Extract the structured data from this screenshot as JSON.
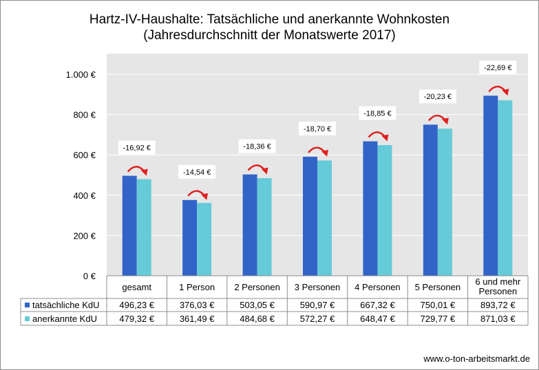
{
  "title": "Hartz-IV-Haushalte: Tatsächliche und anerkannte Wohnkosten",
  "subtitle": "(Jahresdurchschnitt der Monatswerte 2017)",
  "footer": "www.o-ton-arbeitsmarkt.de",
  "chart_data": {
    "type": "bar",
    "title": "Hartz-IV-Haushalte: Tatsächliche und anerkannte Wohnkosten",
    "subtitle": "(Jahresdurchschnitt der Monatswerte 2017)",
    "categories": [
      "gesamt",
      "1 Person",
      "2 Personen",
      "3 Personen",
      "4 Personen",
      "5 Personen",
      "6 und mehr Personen"
    ],
    "category_lines": [
      [
        "gesamt"
      ],
      [
        "1 Person"
      ],
      [
        "2 Personen"
      ],
      [
        "3 Personen"
      ],
      [
        "4 Personen"
      ],
      [
        "5 Personen"
      ],
      [
        "6 und mehr",
        "Personen"
      ]
    ],
    "series": [
      {
        "name": "tatsächliche KdU",
        "color": "#3264c8",
        "values": [
          496.23,
          376.03,
          503.05,
          590.97,
          667.32,
          750.01,
          893.72
        ],
        "labels": [
          "496,23 €",
          "376,03 €",
          "503,05 €",
          "590,97 €",
          "667,32 €",
          "750,01 €",
          "893,72 €"
        ]
      },
      {
        "name": "anerkannte KdU",
        "color": "#66cbd8",
        "values": [
          479.32,
          361.49,
          484.68,
          572.27,
          648.47,
          729.77,
          871.03
        ],
        "labels": [
          "479,32 €",
          "361,49 €",
          "484,68 €",
          "572,27 €",
          "648,47 €",
          "729,77 €",
          "871,03 €"
        ]
      }
    ],
    "differences": [
      "-16,92 €",
      "-14,54 €",
      "-18,36 €",
      "-18,70 €",
      "-18,85 €",
      "-20,23 €",
      "-22,69 €"
    ],
    "ylim": [
      0,
      1000
    ],
    "yticks": [
      0,
      200,
      400,
      600,
      800,
      1000
    ],
    "ytick_labels": [
      "0 €",
      "200 €",
      "400 €",
      "600 €",
      "800 €",
      "1.000 €"
    ],
    "grid": true,
    "legend": "data-table",
    "colors": {
      "plot_background": "#e6e6e6",
      "gridline": "#ffffff",
      "arrow": "#e02020"
    }
  }
}
